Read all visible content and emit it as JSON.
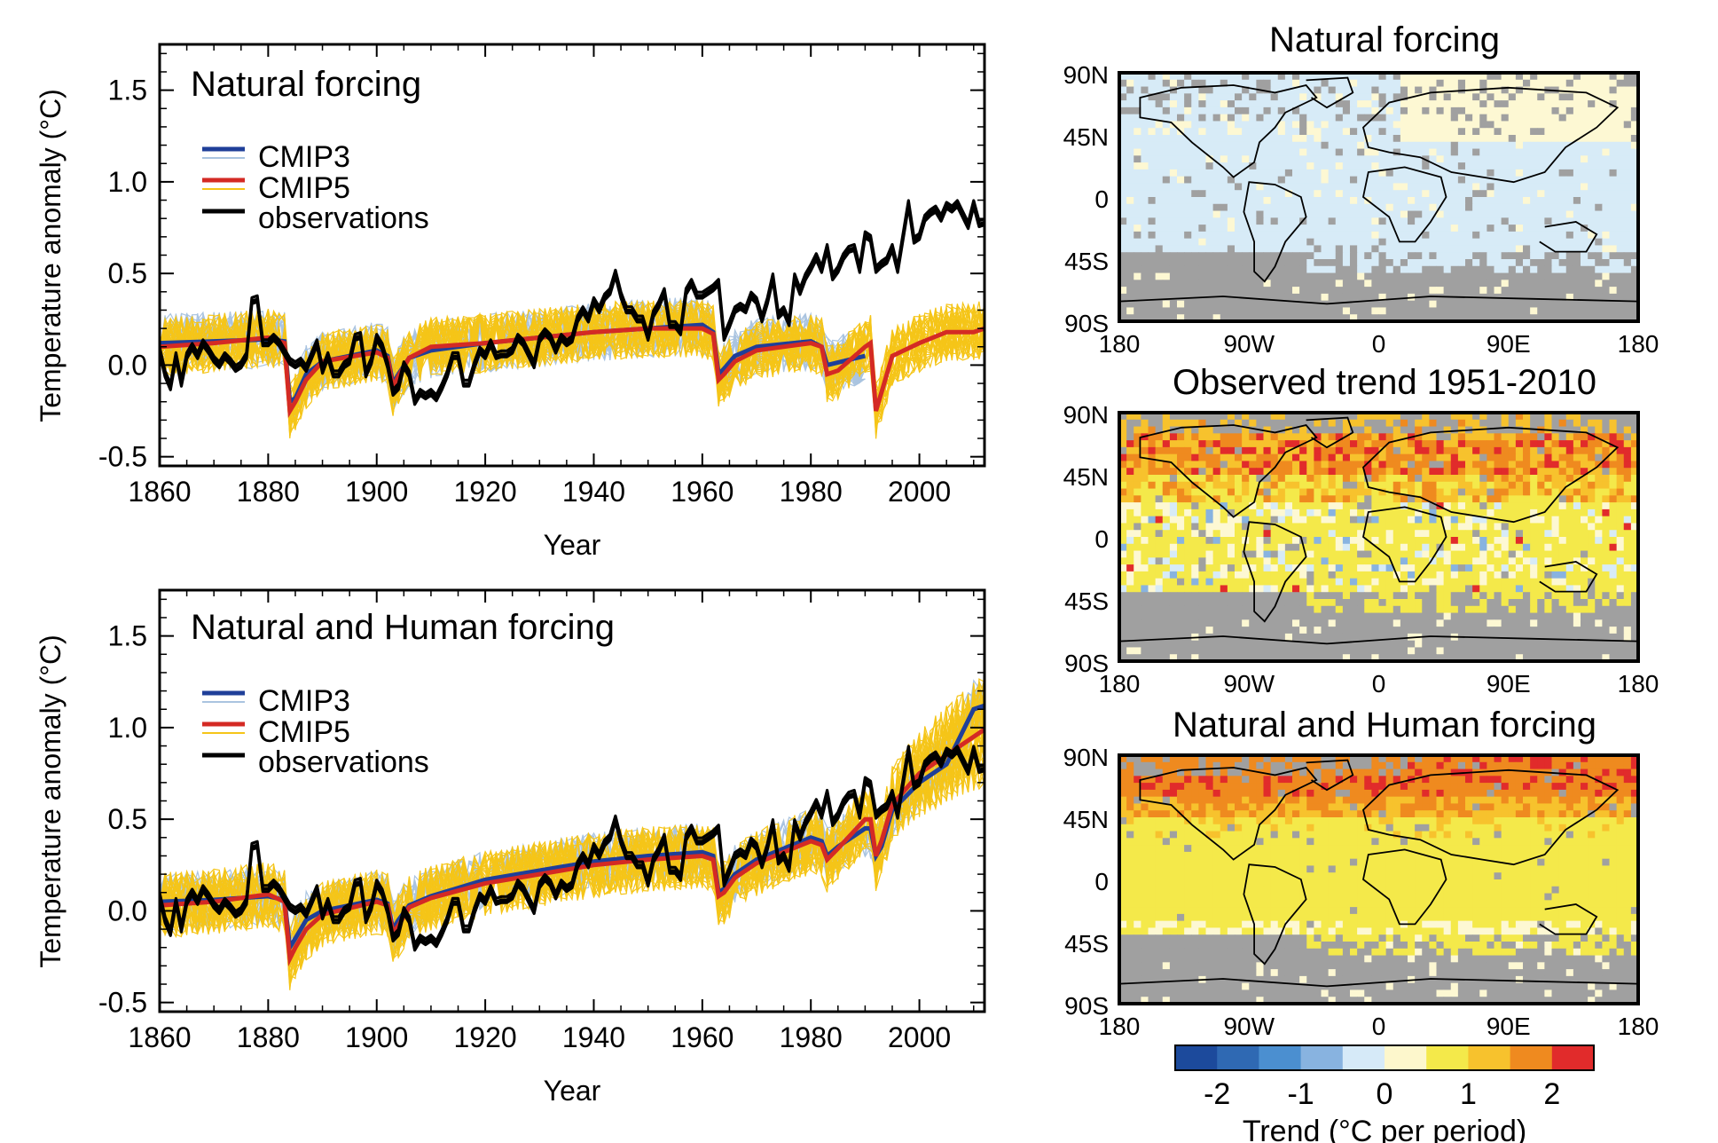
{
  "chart_data": [
    {
      "type": "line",
      "panel": "top",
      "title": "Natural forcing",
      "xlabel": "Year",
      "ylabel": "Temperature anomaly (°C)",
      "xlim": [
        1860,
        2012
      ],
      "ylim": [
        -0.55,
        1.75
      ],
      "xticks": [
        1860,
        1880,
        1900,
        1920,
        1940,
        1960,
        1980,
        2000
      ],
      "yticks": [
        -0.5,
        0.0,
        0.5,
        1.0,
        1.5
      ],
      "ytick_labels": [
        "-0.5",
        "0.0",
        "0.5",
        "1.0",
        "1.5"
      ],
      "legend": [
        "CMIP3",
        "CMIP5",
        "observations"
      ],
      "legend_position": "top-left",
      "colors": {
        "cmip3_mean": "#1f3f99",
        "cmip3_members": "#aac4e0",
        "cmip5_mean": "#d42a24",
        "cmip5_members": "#f5c518",
        "observations": "#000000"
      },
      "series": [
        {
          "name": "observations",
          "x": [
            1860,
            1861,
            1862,
            1863,
            1864,
            1865,
            1866,
            1867,
            1868,
            1869,
            1870,
            1871,
            1872,
            1873,
            1874,
            1875,
            1876,
            1877,
            1878,
            1879,
            1880,
            1881,
            1882,
            1883,
            1884,
            1885,
            1886,
            1887,
            1888,
            1889,
            1890,
            1891,
            1892,
            1893,
            1894,
            1895,
            1896,
            1897,
            1898,
            1899,
            1900,
            1901,
            1902,
            1903,
            1904,
            1905,
            1906,
            1907,
            1908,
            1909,
            1910,
            1911,
            1912,
            1913,
            1914,
            1915,
            1916,
            1917,
            1918,
            1919,
            1920,
            1921,
            1922,
            1923,
            1924,
            1925,
            1926,
            1927,
            1928,
            1929,
            1930,
            1931,
            1932,
            1933,
            1934,
            1935,
            1936,
            1937,
            1938,
            1939,
            1940,
            1941,
            1942,
            1943,
            1944,
            1945,
            1946,
            1947,
            1948,
            1949,
            1950,
            1951,
            1952,
            1953,
            1954,
            1955,
            1956,
            1957,
            1958,
            1959,
            1960,
            1961,
            1962,
            1963,
            1964,
            1965,
            1966,
            1967,
            1968,
            1969,
            1970,
            1971,
            1972,
            1973,
            1974,
            1975,
            1976,
            1977,
            1978,
            1979,
            1980,
            1981,
            1982,
            1983,
            1984,
            1985,
            1986,
            1987,
            1988,
            1989,
            1990,
            1991,
            1992,
            1993,
            1994,
            1995,
            1996,
            1997,
            1998,
            1999,
            2000,
            2001,
            2002,
            2003,
            2004,
            2005,
            2006,
            2007,
            2008,
            2009,
            2010,
            2011,
            2012
          ],
          "values": [
            0.08,
            -0.05,
            -0.12,
            0.05,
            -0.1,
            0.05,
            0.1,
            0.05,
            0.12,
            0.08,
            0.03,
            0.0,
            0.05,
            0.02,
            -0.02,
            0.0,
            0.05,
            0.35,
            0.36,
            0.12,
            0.12,
            0.15,
            0.12,
            0.07,
            0.02,
            0.0,
            0.02,
            -0.02,
            0.05,
            0.12,
            -0.03,
            0.05,
            -0.05,
            -0.05,
            0.0,
            0.02,
            0.15,
            0.16,
            -0.05,
            0.02,
            0.15,
            0.1,
            0.0,
            -0.15,
            -0.12,
            0.0,
            -0.05,
            -0.2,
            -0.15,
            -0.17,
            -0.15,
            -0.18,
            -0.12,
            -0.05,
            0.05,
            0.05,
            -0.1,
            -0.1,
            0.0,
            0.08,
            0.05,
            0.12,
            0.05,
            0.06,
            0.06,
            0.08,
            0.15,
            0.12,
            0.06,
            0.0,
            0.14,
            0.18,
            0.15,
            0.08,
            0.15,
            0.12,
            0.14,
            0.25,
            0.3,
            0.25,
            0.35,
            0.3,
            0.37,
            0.4,
            0.5,
            0.38,
            0.3,
            0.3,
            0.25,
            0.25,
            0.15,
            0.28,
            0.33,
            0.4,
            0.22,
            0.22,
            0.18,
            0.4,
            0.45,
            0.38,
            0.38,
            0.4,
            0.42,
            0.45,
            0.15,
            0.22,
            0.3,
            0.32,
            0.3,
            0.38,
            0.35,
            0.25,
            0.35,
            0.48,
            0.27,
            0.3,
            0.23,
            0.48,
            0.4,
            0.48,
            0.53,
            0.59,
            0.52,
            0.64,
            0.48,
            0.52,
            0.59,
            0.63,
            0.64,
            0.52,
            0.71,
            0.69,
            0.52,
            0.55,
            0.57,
            0.64,
            0.52,
            0.7,
            0.88,
            0.68,
            0.7,
            0.8,
            0.83,
            0.85,
            0.8,
            0.87,
            0.85,
            0.88,
            0.82,
            0.76,
            0.88,
            0.77,
            0.78
          ]
        },
        {
          "name": "CMIP3",
          "x": [
            1860,
            1870,
            1880,
            1883,
            1884,
            1885,
            1887,
            1890,
            1900,
            1902,
            1903,
            1904,
            1906,
            1910,
            1920,
            1930,
            1940,
            1950,
            1960,
            1962,
            1963,
            1964,
            1966,
            1970,
            1980,
            1982,
            1983,
            1990
          ],
          "values": [
            0.12,
            0.13,
            0.14,
            0.13,
            -0.2,
            -0.18,
            -0.05,
            0.02,
            0.08,
            0.05,
            -0.1,
            -0.05,
            0.04,
            0.08,
            0.12,
            0.15,
            0.18,
            0.2,
            0.22,
            0.18,
            -0.05,
            -0.02,
            0.05,
            0.1,
            0.13,
            0.1,
            0.0,
            0.05
          ]
        },
        {
          "name": "CMIP5",
          "x": [
            1860,
            1870,
            1880,
            1883,
            1884,
            1885,
            1887,
            1890,
            1900,
            1902,
            1903,
            1904,
            1906,
            1910,
            1920,
            1930,
            1940,
            1950,
            1960,
            1962,
            1963,
            1964,
            1966,
            1970,
            1980,
            1982,
            1983,
            1985,
            1990,
            1991,
            1992,
            1993,
            1995,
            2000,
            2005,
            2010,
            2012
          ],
          "values": [
            0.1,
            0.12,
            0.15,
            0.12,
            -0.25,
            -0.2,
            -0.08,
            0.02,
            0.07,
            0.04,
            -0.12,
            -0.06,
            0.04,
            0.1,
            0.12,
            0.15,
            0.18,
            0.2,
            0.2,
            0.17,
            -0.08,
            -0.05,
            0.02,
            0.08,
            0.12,
            0.1,
            -0.05,
            -0.03,
            0.1,
            0.12,
            -0.25,
            -0.15,
            0.05,
            0.12,
            0.18,
            0.18,
            0.2
          ]
        }
      ]
    },
    {
      "type": "line",
      "panel": "bottom",
      "title": "Natural and Human forcing",
      "xlabel": "Year",
      "ylabel": "Temperature anomaly (°C)",
      "xlim": [
        1860,
        2012
      ],
      "ylim": [
        -0.55,
        1.75
      ],
      "xticks": [
        1860,
        1880,
        1900,
        1920,
        1940,
        1960,
        1980,
        2000
      ],
      "yticks": [
        -0.5,
        0.0,
        0.5,
        1.0,
        1.5
      ],
      "ytick_labels": [
        "-0.5",
        "0.0",
        "0.5",
        "1.0",
        "1.5"
      ],
      "legend": [
        "CMIP3",
        "CMIP5",
        "observations"
      ],
      "legend_position": "top-left",
      "colors": {
        "cmip3_mean": "#1f3f99",
        "cmip3_members": "#aac4e0",
        "cmip5_mean": "#d42a24",
        "cmip5_members": "#f5c518",
        "observations": "#000000"
      },
      "series": [
        {
          "name": "observations",
          "same_as": "top"
        },
        {
          "name": "CMIP3",
          "x": [
            1860,
            1870,
            1880,
            1883,
            1884,
            1885,
            1887,
            1890,
            1900,
            1902,
            1903,
            1904,
            1906,
            1910,
            1920,
            1930,
            1940,
            1950,
            1960,
            1962,
            1963,
            1964,
            1966,
            1970,
            1980,
            1982,
            1983,
            1985,
            1990,
            1991,
            1992,
            1993,
            1995,
            2000,
            2005,
            2010,
            2012
          ],
          "values": [
            0.05,
            0.06,
            0.08,
            0.06,
            -0.2,
            -0.15,
            -0.05,
            0.0,
            0.06,
            0.04,
            -0.1,
            -0.05,
            0.03,
            0.08,
            0.17,
            0.22,
            0.27,
            0.3,
            0.32,
            0.3,
            0.1,
            0.12,
            0.2,
            0.28,
            0.4,
            0.38,
            0.3,
            0.35,
            0.45,
            0.45,
            0.3,
            0.35,
            0.55,
            0.7,
            0.8,
            1.1,
            1.12
          ]
        },
        {
          "name": "CMIP5",
          "x": [
            1860,
            1870,
            1880,
            1883,
            1884,
            1885,
            1887,
            1890,
            1900,
            1902,
            1903,
            1904,
            1906,
            1910,
            1920,
            1930,
            1940,
            1950,
            1960,
            1962,
            1963,
            1964,
            1966,
            1970,
            1980,
            1982,
            1983,
            1985,
            1990,
            1991,
            1992,
            1993,
            1995,
            2000,
            2005,
            2010,
            2012
          ],
          "values": [
            0.03,
            0.05,
            0.09,
            0.05,
            -0.26,
            -0.2,
            -0.1,
            -0.02,
            0.05,
            0.03,
            -0.12,
            -0.08,
            0.02,
            0.07,
            0.15,
            0.2,
            0.25,
            0.28,
            0.3,
            0.28,
            0.08,
            0.1,
            0.18,
            0.26,
            0.38,
            0.36,
            0.28,
            0.34,
            0.5,
            0.5,
            0.3,
            0.38,
            0.58,
            0.75,
            0.85,
            0.95,
            0.99
          ]
        }
      ]
    },
    {
      "type": "heatmap",
      "panel": "map-1",
      "title": "Natural forcing",
      "xtick_labels": [
        "180",
        "90W",
        "0",
        "90E",
        "180"
      ],
      "ytick_labels": [
        "90N",
        "45N",
        "0",
        "45S",
        "90S"
      ]
    },
    {
      "type": "heatmap",
      "panel": "map-2",
      "title": "Observed trend 1951-2010",
      "xtick_labels": [
        "180",
        "90W",
        "0",
        "90E",
        "180"
      ],
      "ytick_labels": [
        "90N",
        "45N",
        "0",
        "45S",
        "90S"
      ]
    },
    {
      "type": "heatmap",
      "panel": "map-3",
      "title": "Natural and Human forcing",
      "xtick_labels": [
        "180",
        "90W",
        "0",
        "90E",
        "180"
      ],
      "ytick_labels": [
        "90N",
        "45N",
        "0",
        "45S",
        "90S"
      ]
    }
  ],
  "colorbar": {
    "label": "Trend (°C per period)",
    "tick_labels": [
      "-2",
      "-1",
      "0",
      "1",
      "2"
    ],
    "colors": [
      "#1c4a9c",
      "#2f69b3",
      "#4b8fd0",
      "#88b3e0",
      "#d6eaf8",
      "#fdf7cc",
      "#f4e94a",
      "#f7c22d",
      "#ef8a1f",
      "#e12b2b"
    ]
  },
  "map_colors": {
    "missing": "#a0a0a0",
    "light_blue": "#d7ebf7",
    "cream": "#fdf8d3",
    "yellow": "#f4e94a",
    "orange": "#f7c22d",
    "dark_orange": "#ef8a1f",
    "red": "#e12b2b",
    "blue": "#88b3e0"
  }
}
